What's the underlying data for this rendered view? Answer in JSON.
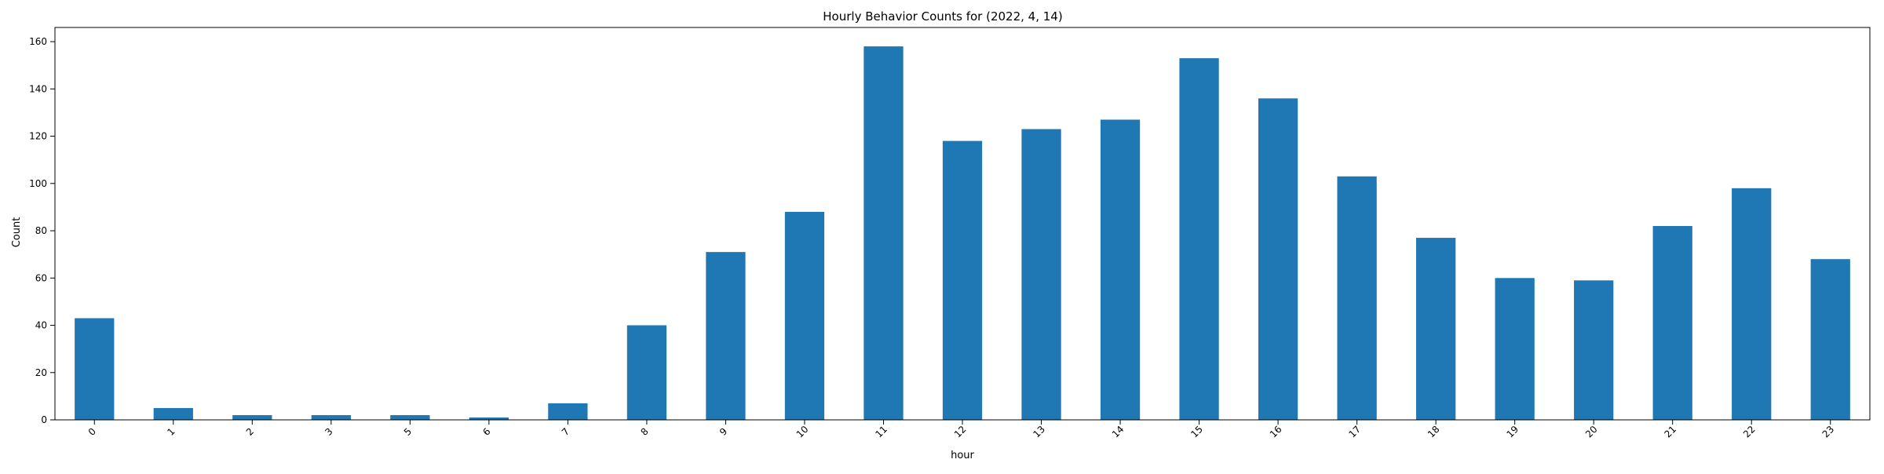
{
  "chart_data": {
    "type": "bar",
    "title": "Hourly Behavior Counts for (2022, 4, 14)",
    "xlabel": "hour",
    "ylabel": "Count",
    "categories": [
      "0",
      "1",
      "2",
      "3",
      "5",
      "6",
      "7",
      "8",
      "9",
      "10",
      "11",
      "12",
      "13",
      "14",
      "15",
      "16",
      "17",
      "18",
      "19",
      "20",
      "21",
      "22",
      "23"
    ],
    "values": [
      43,
      5,
      2,
      2,
      2,
      1,
      7,
      40,
      71,
      88,
      158,
      118,
      123,
      127,
      153,
      136,
      103,
      77,
      60,
      59,
      82,
      98,
      68
    ],
    "ylim": [
      0,
      166
    ],
    "yticks": [
      0,
      20,
      40,
      60,
      80,
      100,
      120,
      140,
      160
    ],
    "grid": false,
    "legend": "none",
    "bar_color": "#1f77b4"
  }
}
